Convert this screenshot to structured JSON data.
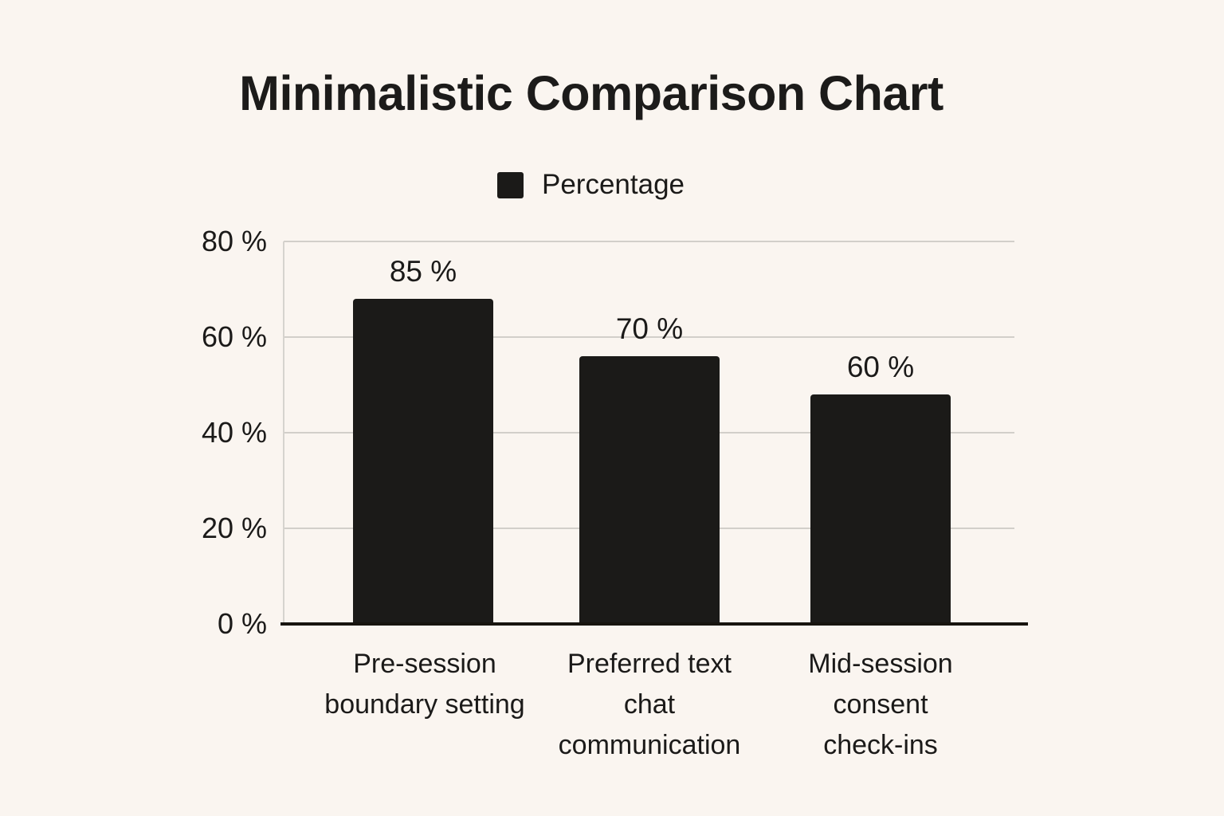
{
  "chart_data": {
    "type": "bar",
    "title": "Minimalistic Comparison Chart",
    "categories": [
      "Pre-session boundary setting",
      "Preferred text chat communication",
      "Mid-session consent check-ins"
    ],
    "series": [
      {
        "name": "Percentage",
        "values": [
          85,
          70,
          60
        ]
      }
    ],
    "value_labels": [
      "85 %",
      "70 %",
      "60 %"
    ],
    "y_axis": {
      "min": 0,
      "max": 80,
      "step": 20,
      "unit": "%",
      "tick_labels": [
        "80 %",
        "60 %",
        "40 %",
        "20 %",
        "0 %"
      ]
    },
    "grid": "horizontal",
    "legend_position": "top-center",
    "bar_color": "#1b1a18",
    "background_color": "#faf5f0",
    "category_lines": [
      [
        "Pre-session",
        "boundary setting"
      ],
      [
        "Preferred text",
        "chat",
        "communication"
      ],
      [
        "Mid-session",
        "consent",
        "check-ins"
      ]
    ],
    "render_note": "Bars are drawn as value-percent of full plot height although top gridline is 80 %"
  }
}
